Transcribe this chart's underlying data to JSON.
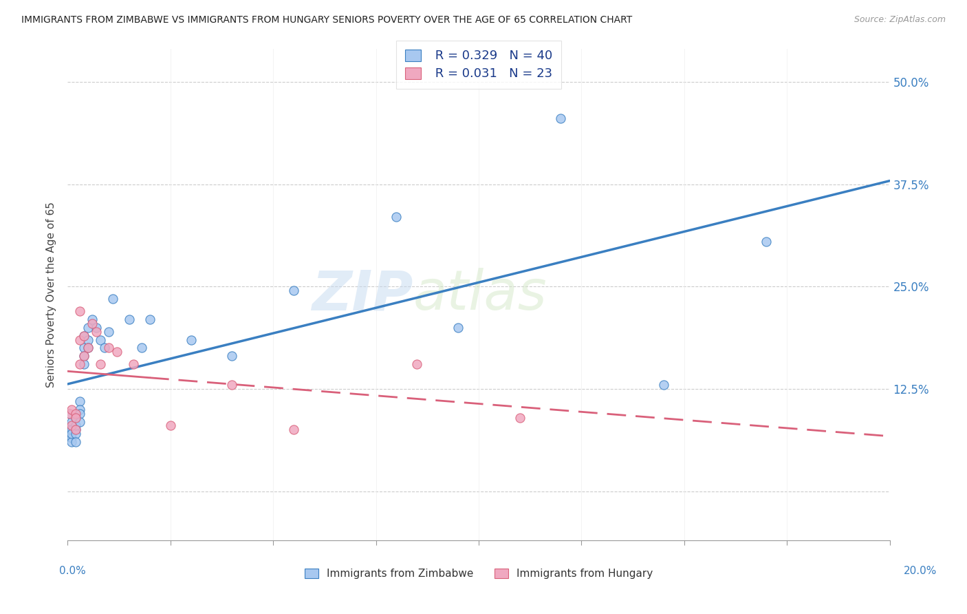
{
  "title": "IMMIGRANTS FROM ZIMBABWE VS IMMIGRANTS FROM HUNGARY SENIORS POVERTY OVER THE AGE OF 65 CORRELATION CHART",
  "source": "Source: ZipAtlas.com",
  "ylabel": "Seniors Poverty Over the Age of 65",
  "legend_R_zim": "R = 0.329",
  "legend_N_zim": "N = 40",
  "legend_R_hun": "R = 0.031",
  "legend_N_hun": "N = 23",
  "color_zim": "#a8c8f0",
  "color_hun": "#f0a8c0",
  "color_zim_line": "#3a7fc1",
  "color_hun_line": "#d9607a",
  "color_legend_text": "#1a3a8a",
  "watermark_zip": "ZIP",
  "watermark_atlas": "atlas",
  "background": "#ffffff",
  "xlim": [
    0.0,
    0.2
  ],
  "ylim": [
    -0.06,
    0.54
  ],
  "ytick_vals": [
    0.0,
    0.125,
    0.25,
    0.375,
    0.5
  ],
  "ytick_labels": [
    "",
    "12.5%",
    "25.0%",
    "37.5%",
    "50.0%"
  ],
  "zim_x": [
    0.0005,
    0.0005,
    0.001,
    0.001,
    0.001,
    0.001,
    0.001,
    0.002,
    0.002,
    0.002,
    0.002,
    0.002,
    0.003,
    0.003,
    0.003,
    0.003,
    0.004,
    0.004,
    0.004,
    0.004,
    0.005,
    0.005,
    0.005,
    0.006,
    0.007,
    0.008,
    0.009,
    0.01,
    0.011,
    0.015,
    0.018,
    0.02,
    0.03,
    0.04,
    0.055,
    0.08,
    0.095,
    0.12,
    0.145,
    0.17
  ],
  "zim_y": [
    0.095,
    0.075,
    0.085,
    0.065,
    0.06,
    0.075,
    0.07,
    0.09,
    0.075,
    0.07,
    0.08,
    0.06,
    0.11,
    0.1,
    0.095,
    0.085,
    0.19,
    0.175,
    0.165,
    0.155,
    0.2,
    0.185,
    0.175,
    0.21,
    0.2,
    0.185,
    0.175,
    0.195,
    0.235,
    0.21,
    0.175,
    0.21,
    0.185,
    0.165,
    0.245,
    0.335,
    0.2,
    0.455,
    0.13,
    0.305
  ],
  "hun_x": [
    0.0005,
    0.001,
    0.001,
    0.002,
    0.002,
    0.002,
    0.003,
    0.003,
    0.003,
    0.004,
    0.004,
    0.005,
    0.006,
    0.007,
    0.008,
    0.01,
    0.012,
    0.016,
    0.025,
    0.04,
    0.055,
    0.085,
    0.11
  ],
  "hun_y": [
    0.095,
    0.1,
    0.08,
    0.095,
    0.09,
    0.075,
    0.22,
    0.185,
    0.155,
    0.19,
    0.165,
    0.175,
    0.205,
    0.195,
    0.155,
    0.175,
    0.17,
    0.155,
    0.08,
    0.13,
    0.075,
    0.155,
    0.09
  ]
}
